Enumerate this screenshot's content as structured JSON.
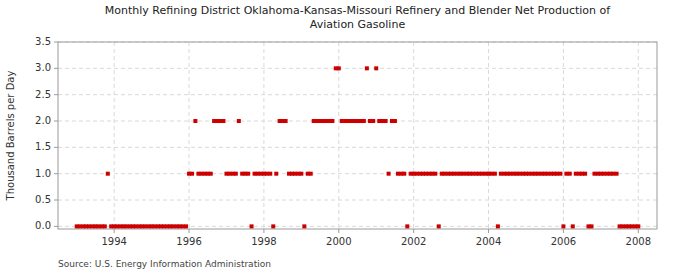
{
  "chart_data": {
    "type": "scatter",
    "title": "Monthly Refining District Oklahoma-Kansas-Missouri Refinery and Blender Net Production of\nAviation Gasoline",
    "ylabel": "Thousand Barrels per Day",
    "source": "Source: U.S. Energy Information Administration",
    "color": "#cc0000",
    "marker": "square",
    "grid": true,
    "xlim": [
      1992.5,
      2008.5
    ],
    "ylim": [
      -0.05,
      3.5
    ],
    "xticks": [
      1994,
      1996,
      1998,
      2000,
      2002,
      2004,
      2006,
      2008
    ],
    "yticks": [
      {
        "value": 0.0,
        "label": "0.0"
      },
      0.5,
      {
        "value": 1.0,
        "label": "1.0"
      },
      1.5,
      {
        "value": 2.0,
        "label": "2.0"
      },
      2.5,
      {
        "value": 3.0,
        "label": "3.0"
      },
      3.5
    ],
    "x": [
      1993.0,
      1993.08,
      1993.17,
      1993.25,
      1993.33,
      1993.42,
      1993.5,
      1993.58,
      1993.67,
      1993.75,
      1993.83,
      1993.92,
      1994.0,
      1994.08,
      1994.17,
      1994.25,
      1994.33,
      1994.42,
      1994.5,
      1994.58,
      1994.67,
      1994.75,
      1994.83,
      1994.92,
      1995.0,
      1995.08,
      1995.17,
      1995.25,
      1995.33,
      1995.42,
      1995.5,
      1995.58,
      1995.67,
      1995.75,
      1995.83,
      1995.92,
      1996.0,
      1996.08,
      1996.17,
      1996.25,
      1996.33,
      1996.42,
      1996.5,
      1996.58,
      1996.67,
      1996.75,
      1996.83,
      1996.92,
      1997.0,
      1997.08,
      1997.17,
      1997.25,
      1997.33,
      1997.42,
      1997.5,
      1997.58,
      1997.67,
      1997.75,
      1997.83,
      1997.92,
      1998.0,
      1998.08,
      1998.17,
      1998.25,
      1998.33,
      1998.42,
      1998.5,
      1998.58,
      1998.67,
      1998.75,
      1998.83,
      1998.92,
      1999.0,
      1999.08,
      1999.17,
      1999.25,
      1999.33,
      1999.42,
      1999.5,
      1999.58,
      1999.67,
      1999.75,
      1999.83,
      1999.92,
      2000.0,
      2000.08,
      2000.17,
      2000.25,
      2000.33,
      2000.42,
      2000.5,
      2000.58,
      2000.67,
      2000.75,
      2000.83,
      2000.92,
      2001.0,
      2001.08,
      2001.17,
      2001.25,
      2001.33,
      2001.42,
      2001.5,
      2001.58,
      2001.67,
      2001.75,
      2001.83,
      2001.92,
      2002.0,
      2002.08,
      2002.17,
      2002.25,
      2002.33,
      2002.42,
      2002.5,
      2002.58,
      2002.67,
      2002.75,
      2002.83,
      2002.92,
      2003.0,
      2003.08,
      2003.17,
      2003.25,
      2003.33,
      2003.42,
      2003.5,
      2003.58,
      2003.67,
      2003.75,
      2003.83,
      2003.92,
      2004.0,
      2004.08,
      2004.17,
      2004.25,
      2004.33,
      2004.42,
      2004.5,
      2004.58,
      2004.67,
      2004.75,
      2004.83,
      2004.92,
      2005.0,
      2005.08,
      2005.17,
      2005.25,
      2005.33,
      2005.42,
      2005.5,
      2005.58,
      2005.67,
      2005.75,
      2005.83,
      2005.92,
      2006.0,
      2006.08,
      2006.17,
      2006.25,
      2006.33,
      2006.42,
      2006.5,
      2006.58,
      2006.67,
      2006.75,
      2006.83,
      2006.92,
      2007.0,
      2007.08,
      2007.17,
      2007.25,
      2007.33,
      2007.42,
      2007.5,
      2007.58,
      2007.67,
      2007.75,
      2007.83,
      2007.92,
      2008.0
    ],
    "values": [
      0,
      0,
      0,
      0,
      0,
      0,
      0,
      0,
      0,
      0,
      1,
      0,
      0,
      0,
      0,
      0,
      0,
      0,
      0,
      0,
      0,
      0,
      0,
      0,
      0,
      0,
      0,
      0,
      0,
      0,
      0,
      0,
      0,
      0,
      0,
      0,
      1,
      1,
      2,
      1,
      1,
      1,
      1,
      1,
      2,
      2,
      2,
      2,
      1,
      1,
      1,
      1,
      2,
      1,
      1,
      1,
      0,
      1,
      1,
      1,
      1,
      1,
      1,
      0,
      1,
      2,
      2,
      2,
      1,
      1,
      1,
      1,
      1,
      0,
      1,
      1,
      2,
      2,
      2,
      2,
      2,
      2,
      2,
      3,
      3,
      2,
      2,
      2,
      2,
      2,
      2,
      2,
      2,
      3,
      2,
      2,
      3,
      2,
      2,
      2,
      1,
      2,
      2,
      1,
      1,
      1,
      0,
      1,
      1,
      1,
      1,
      1,
      1,
      1,
      1,
      1,
      0,
      1,
      1,
      1,
      1,
      1,
      1,
      1,
      1,
      1,
      1,
      1,
      1,
      1,
      1,
      1,
      1,
      1,
      1,
      0,
      1,
      1,
      1,
      1,
      1,
      1,
      1,
      1,
      1,
      1,
      1,
      1,
      1,
      1,
      1,
      1,
      1,
      1,
      1,
      1,
      0,
      1,
      1,
      0,
      1,
      1,
      1,
      1,
      0,
      0,
      1,
      1,
      1,
      1,
      1,
      1,
      1,
      1,
      0,
      0,
      0,
      0,
      0,
      0,
      0
    ]
  }
}
